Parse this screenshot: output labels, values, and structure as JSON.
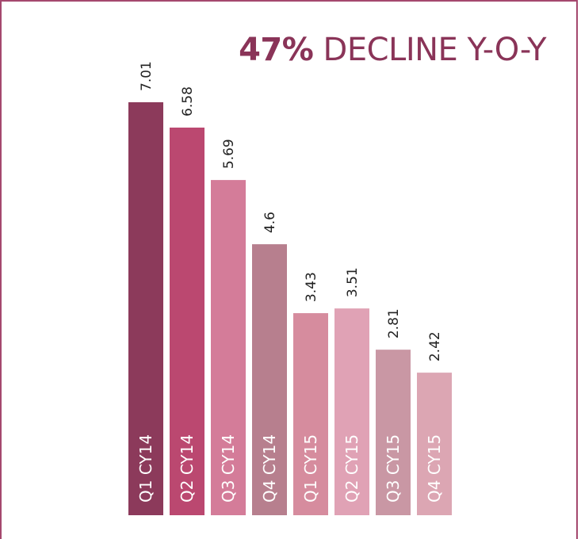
{
  "headline": {
    "bold": "47%",
    "rest": "DECLINE Y-O-Y"
  },
  "chart_data": {
    "type": "bar",
    "title": "47% DECLINE Y-O-Y",
    "xlabel": "",
    "ylabel": "",
    "categories": [
      "Q1 CY14",
      "Q2 CY14",
      "Q3 CY14",
      "Q4 CY14",
      "Q1 CY15",
      "Q2 CY15",
      "Q3 CY15",
      "Q4 CY15"
    ],
    "values": [
      7.01,
      6.58,
      5.69,
      4.6,
      3.43,
      3.51,
      2.81,
      2.42
    ],
    "value_labels": [
      "7.01",
      "6.58",
      "5.69",
      "4.6",
      "3.43",
      "3.51",
      "2.81",
      "2.42"
    ],
    "colors": [
      "#8c3a5b",
      "#bb4870",
      "#d47c99",
      "#b77f8e",
      "#d68c9e",
      "#e0a2b5",
      "#c997a4",
      "#dca6b3"
    ],
    "ylim": [
      0,
      7.01
    ],
    "grid": false,
    "legend": "none"
  }
}
